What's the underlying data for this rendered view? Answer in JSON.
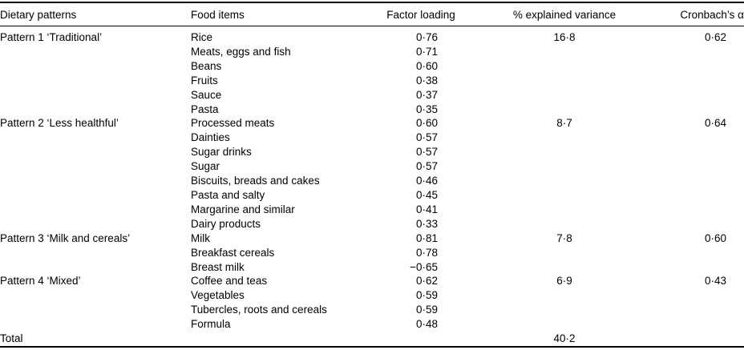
{
  "table": {
    "headers": [
      "Dietary patterns",
      "Food items",
      "Factor loading",
      "% explained variance",
      "Cronbach’s α"
    ],
    "groups": [
      {
        "pattern": "Pattern 1 ‘Traditional’",
        "variance": "16·8",
        "cronbach": "0·62",
        "items": [
          {
            "food": "Rice",
            "loading": "0·76"
          },
          {
            "food": "Meats, eggs and fish",
            "loading": "0·71"
          },
          {
            "food": "Beans",
            "loading": "0·60"
          },
          {
            "food": "Fruits",
            "loading": "0·38"
          },
          {
            "food": "Sauce",
            "loading": "0·37"
          },
          {
            "food": "Pasta",
            "loading": "0·35"
          }
        ]
      },
      {
        "pattern": "Pattern 2 ‘Less healthful’",
        "variance": "8·7",
        "cronbach": "0·64",
        "items": [
          {
            "food": "Processed meats",
            "loading": "0·60"
          },
          {
            "food": "Dainties",
            "loading": "0·57"
          },
          {
            "food": "Sugar drinks",
            "loading": "0·57"
          },
          {
            "food": "Sugar",
            "loading": "0·57"
          },
          {
            "food": "Biscuits, breads and cakes",
            "loading": "0·46"
          },
          {
            "food": "Pasta and salty",
            "loading": "0·45"
          },
          {
            "food": "Margarine and similar",
            "loading": "0·41"
          },
          {
            "food": "Dairy products",
            "loading": "0·33"
          }
        ]
      },
      {
        "pattern": "Pattern 3 ‘Milk and cereals’",
        "variance": "7·8",
        "cronbach": "0·60",
        "items": [
          {
            "food": "Milk",
            "loading": "0·81"
          },
          {
            "food": "Breakfast cereals",
            "loading": "0·78"
          },
          {
            "food": "Breast milk",
            "loading": "−0·65"
          }
        ]
      },
      {
        "pattern": "Pattern 4 ‘Mixed’",
        "variance": "6·9",
        "cronbach": "0·43",
        "items": [
          {
            "food": "Coffee and teas",
            "loading": "0·62"
          },
          {
            "food": "Vegetables",
            "loading": "0·59"
          },
          {
            "food": "Tubercles, roots and cereals",
            "loading": "0·59"
          },
          {
            "food": "Formula",
            "loading": "0·48"
          }
        ]
      }
    ],
    "total": {
      "label": "Total",
      "variance": "40·2"
    }
  }
}
